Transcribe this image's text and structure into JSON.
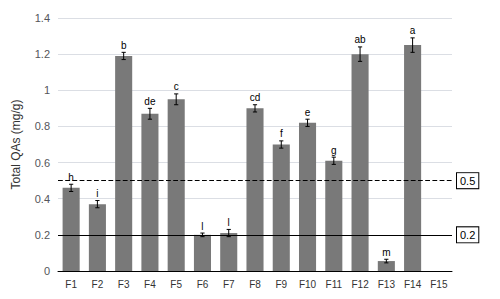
{
  "chart_data": {
    "type": "bar",
    "categories": [
      "F1",
      "F2",
      "F3",
      "F4",
      "F5",
      "F6",
      "F7",
      "F8",
      "F9",
      "F10",
      "F11",
      "F12",
      "F13",
      "F14",
      "F15"
    ],
    "values": [
      0.46,
      0.37,
      1.19,
      0.87,
      0.95,
      0.2,
      0.21,
      0.9,
      0.7,
      0.82,
      0.61,
      1.2,
      0.055,
      1.25,
      0.0
    ],
    "errors": [
      0.02,
      0.02,
      0.02,
      0.03,
      0.03,
      0.01,
      0.02,
      0.02,
      0.02,
      0.02,
      0.02,
      0.04,
      0.01,
      0.04,
      0.0
    ],
    "letters": [
      "h",
      "i",
      "b",
      "de",
      "c",
      "l",
      "l",
      "cd",
      "f",
      "e",
      "g",
      "ab",
      "m",
      "a",
      null
    ],
    "color": "#797979",
    "ylabel": "Total QAs (mg/g)",
    "ylim": [
      0,
      1.4
    ],
    "yticks": [
      0,
      0.2,
      0.4,
      0.6,
      0.8,
      1,
      1.2,
      1.4
    ],
    "grid": true,
    "hlines": [
      {
        "value": 0.5,
        "label": "0.5",
        "line_style": "dashed"
      },
      {
        "value": 0.2,
        "label": "0.2",
        "line_style": "solid"
      }
    ]
  }
}
